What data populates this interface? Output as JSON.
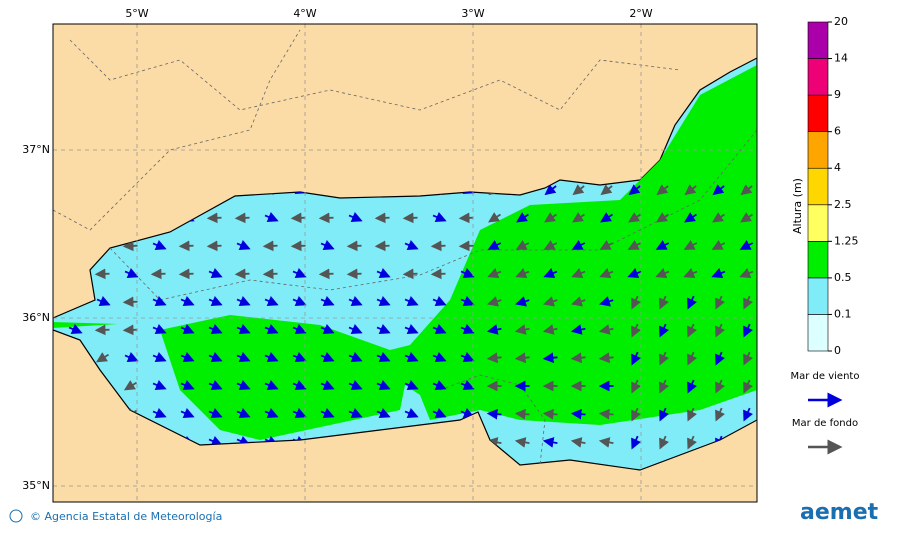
{
  "map": {
    "lon_labels": [
      "5°W",
      "4°W",
      "3°W",
      "2°W"
    ],
    "lat_labels": [
      "37°N",
      "36°N",
      "35°N"
    ],
    "colorbar": {
      "title": "Altura (m)",
      "levels": [
        0,
        0.1,
        0.5,
        1.25,
        2.5,
        4,
        6,
        9,
        14,
        20
      ],
      "colors": [
        "#dcffff",
        "#80ecf8",
        "#00ee00",
        "#ffff60",
        "#ffd700",
        "#ffa500",
        "#ff0000",
        "#ee0077",
        "#aa00aa"
      ]
    },
    "legend": [
      {
        "name": "Mar de viento",
        "color": "#0000dd"
      },
      {
        "name": "Mar de fondo",
        "color": "#555555"
      }
    ],
    "credit": "© Agencia Estatal de Meteorología",
    "logo": "aemet"
  }
}
